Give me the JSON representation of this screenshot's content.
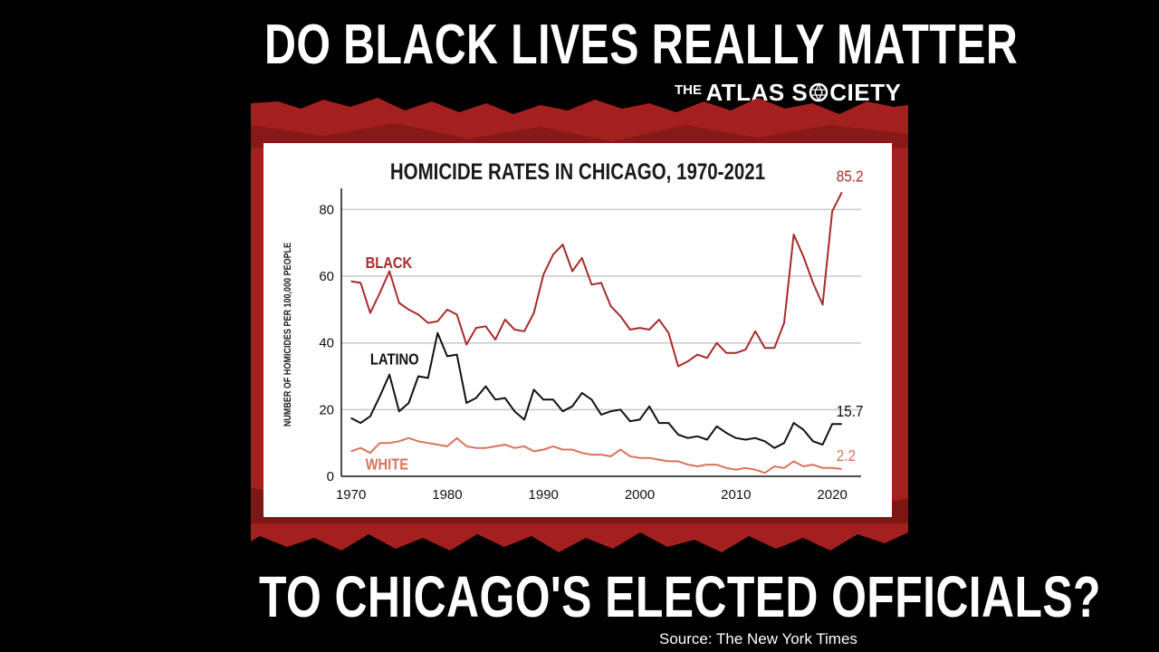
{
  "headline": {
    "top": "DO BLACK LIVES REALLY MATTER",
    "bottom": "TO CHICAGO'S ELECTED OFFICIALS?"
  },
  "brand": {
    "the": "THE",
    "name_part1": "ATLAS S",
    "name_part2": "CIETY"
  },
  "source": "Source: The New York Times",
  "colors": {
    "black_series": "#a82a2a",
    "latino_series": "#111111",
    "white_series": "#d9735a",
    "band": "#a4201f",
    "grid": "#c8c8c8"
  },
  "chart_data": {
    "type": "line",
    "title": "HOMICIDE RATES IN CHICAGO, 1970-2021",
    "ylabel": "NUMBER OF HOMICIDES PER 100,000 PEOPLE",
    "xlabel": "",
    "xlim": [
      1969,
      2023
    ],
    "ylim": [
      0,
      85
    ],
    "x_ticks": [
      1970,
      1980,
      1990,
      2000,
      2010,
      2020
    ],
    "y_ticks": [
      0,
      20,
      40,
      60,
      80
    ],
    "grid": true,
    "x": [
      1970,
      1971,
      1972,
      1973,
      1974,
      1975,
      1976,
      1977,
      1978,
      1979,
      1980,
      1981,
      1982,
      1983,
      1984,
      1985,
      1986,
      1987,
      1988,
      1989,
      1990,
      1991,
      1992,
      1993,
      1994,
      1995,
      1996,
      1997,
      1998,
      1999,
      2000,
      2001,
      2002,
      2003,
      2004,
      2005,
      2006,
      2007,
      2008,
      2009,
      2010,
      2011,
      2012,
      2013,
      2014,
      2015,
      2016,
      2017,
      2018,
      2019,
      2020,
      2021
    ],
    "series": [
      {
        "name": "BLACK",
        "color": "#a82a2a",
        "end_label": "85.2",
        "values": [
          58.5,
          58,
          49,
          55,
          61.5,
          52,
          50,
          48.5,
          46,
          46.5,
          50,
          48.5,
          39.5,
          44.5,
          45,
          41,
          47,
          44,
          43.5,
          49,
          60.5,
          66.5,
          69.5,
          61.5,
          65.5,
          57.5,
          58,
          51,
          48,
          44,
          44.5,
          44,
          47,
          43,
          33,
          34.5,
          36.5,
          35.5,
          40,
          37,
          37,
          38,
          43.5,
          38.5,
          38.5,
          46,
          72.5,
          66,
          58,
          51.5,
          79.5,
          85.2
        ]
      },
      {
        "name": "LATINO",
        "color": "#111111",
        "end_label": "15.7",
        "values": [
          17.5,
          16,
          18,
          24,
          30.5,
          19.5,
          22,
          30,
          29.5,
          43,
          36,
          36.5,
          22,
          23.5,
          27,
          23,
          23.5,
          19.5,
          17,
          26,
          23,
          23,
          19.5,
          21,
          25,
          23,
          18.5,
          19.5,
          20,
          16.5,
          17,
          21,
          16,
          16,
          12.5,
          11.5,
          12,
          11,
          15,
          13,
          11.5,
          11,
          11.5,
          10.5,
          8.5,
          10,
          16,
          14,
          10.5,
          9.5,
          15.7,
          15.7
        ]
      },
      {
        "name": "WHITE",
        "color": "#d9735a",
        "end_label": "2.2",
        "values": [
          7.5,
          8.5,
          7,
          10,
          10,
          10.5,
          11.5,
          10.5,
          10,
          9.5,
          9,
          11.5,
          9,
          8.5,
          8.5,
          9,
          9.5,
          8.5,
          9,
          7.5,
          8,
          9,
          8,
          8,
          7,
          6.5,
          6.5,
          6,
          8,
          6,
          5.5,
          5.5,
          5,
          4.5,
          4.5,
          3.5,
          3,
          3.5,
          3.5,
          2.5,
          2,
          2.5,
          2,
          1,
          3,
          2.5,
          4.5,
          3,
          3.5,
          2.5,
          2.5,
          2.2
        ]
      }
    ]
  }
}
